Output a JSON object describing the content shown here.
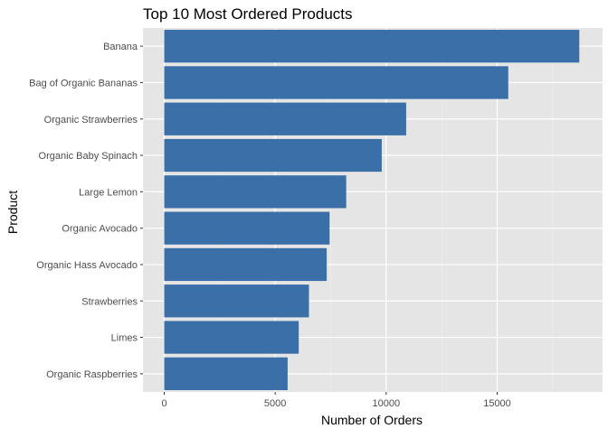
{
  "chart_data": {
    "type": "bar",
    "orientation": "horizontal",
    "title": "Top 10 Most Ordered Products",
    "xlabel": "Number of Orders",
    "ylabel": "Product",
    "categories": [
      "Banana",
      "Bag of Organic Bananas",
      "Organic Strawberries",
      "Organic Baby Spinach",
      "Large Lemon",
      "Organic Avocado",
      "Organic Hass Avocado",
      "Strawberries",
      "Limes",
      "Organic Raspberries"
    ],
    "values": [
      18700,
      15500,
      10900,
      9800,
      8200,
      7450,
      7320,
      6520,
      6060,
      5560
    ],
    "xlim": [
      0,
      19700
    ],
    "xticks": [
      0,
      5000,
      10000,
      15000
    ],
    "xtick_labels": [
      "0",
      "5000",
      "10000",
      "15000"
    ],
    "grid": true,
    "legend": "none",
    "colors": {
      "bar": "#3a6fa8",
      "panel": "#e5e5e5",
      "grid_major": "#ffffff",
      "grid_minor": "#f0f0f0",
      "text": "#000000",
      "tick_text": "#4d4d4d",
      "tick": "#333333"
    }
  }
}
